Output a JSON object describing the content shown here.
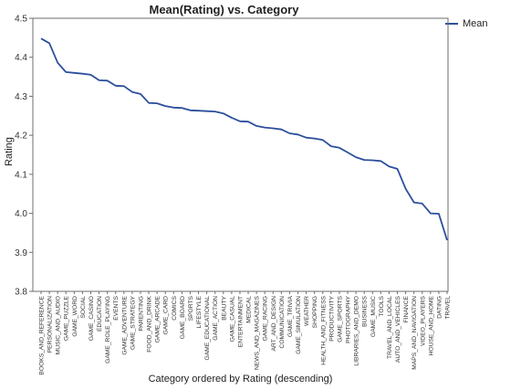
{
  "chart_data": {
    "type": "line",
    "title": "Mean(Rating) vs. Category",
    "xlabel": "Category ordered by Rating (descending)",
    "ylabel": "Rating",
    "ylim": [
      3.8,
      4.5
    ],
    "yticks": [
      "3.8",
      "3.9",
      "4.0",
      "4.1",
      "4.2",
      "4.3",
      "4.4",
      "4.5"
    ],
    "legend_position": "top-right",
    "grid": false,
    "series": [
      {
        "name": "Mean",
        "color": "#2c4f9c",
        "values": [
          4.448,
          4.436,
          4.386,
          4.362,
          4.36,
          4.358,
          4.355,
          4.341,
          4.34,
          4.327,
          4.326,
          4.311,
          4.306,
          4.283,
          4.282,
          4.275,
          4.271,
          4.27,
          4.264,
          4.263,
          4.262,
          4.261,
          4.256,
          4.245,
          4.236,
          4.235,
          4.224,
          4.22,
          4.218,
          4.215,
          4.205,
          4.202,
          4.194,
          4.192,
          4.188,
          4.172,
          4.168,
          4.156,
          4.144,
          4.137,
          4.136,
          4.134,
          4.12,
          4.114,
          4.063,
          4.028,
          4.025,
          4.0,
          3.999,
          3.931
        ]
      }
    ],
    "categories": [
      "BOOKS_AND_REFERENCE",
      "PERSONALIZATION",
      "MUSIC_AND_AUDIO",
      "GAME_PUZZLE",
      "GAME_WORD",
      "SOCIAL",
      "GAME_CASINO",
      "EDUCATION",
      "GAME_ROLE_PLAYING",
      "EVENTS",
      "GAME_ADVENTURE",
      "GAME_STRATEGY",
      "PARENTING",
      "FOOD_AND_DRINK",
      "GAME_ARCADE",
      "GAME_CARD",
      "COMICS",
      "GAME_BOARD",
      "SPORTS",
      "LIFESTYLE",
      "GAME_EDUCATIONAL",
      "GAME_ACTION",
      "BEAUTY",
      "GAME_CASUAL",
      "ENTERTAINMENT",
      "MEDICAL",
      "NEWS_AND_MAGAZINES",
      "GAME_RACING",
      "ART_AND_DESIGN",
      "COMMUNICATION",
      "GAME_TRIVIA",
      "GAME_SIMULATION",
      "WEATHER",
      "SHOPPING",
      "HEALTH_AND_FITNESS",
      "PRODUCTIVITY",
      "GAME_SPORTS",
      "PHOTOGRAPHY",
      "LIBRARIES_AND_DEMO",
      "BUSINESS",
      "GAME_MUSIC",
      "TOOLS",
      "TRAVEL_AND_LOCAL",
      "AUTO_AND_VEHICLES",
      "FINANCE",
      "MAPS_AND_NAVIGATION",
      "VIDEO_PLAYERS",
      "HOUSE_AND_HOME",
      "DATING",
      "TRAVEL"
    ]
  }
}
